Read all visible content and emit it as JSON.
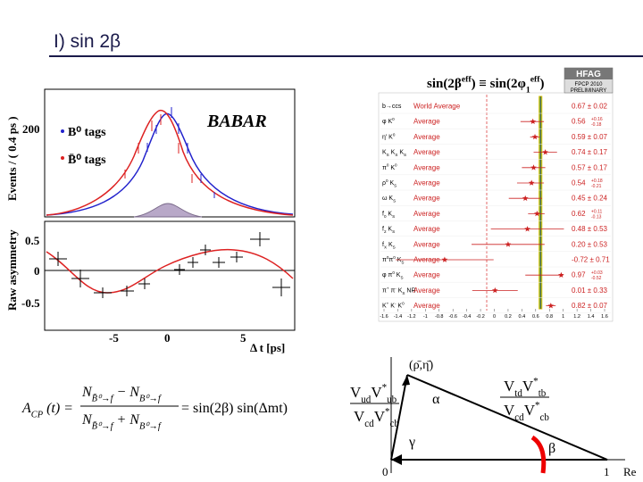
{
  "slide_title": "I)  sin 2β",
  "babar_plot": {
    "brand": "BABAR",
    "y_label_top": "Events / ( 0.4 ps )",
    "y_label_bottom": "Raw asymmetry",
    "x_label": "Δ t [ps]",
    "legend": [
      "B⁰ tags",
      "B̄⁰ tags"
    ],
    "top_ticks": [
      "200"
    ],
    "bottom_ticks": [
      "0.5",
      "0",
      "-0.5"
    ],
    "x_ticks": [
      "-5",
      "0",
      "5"
    ]
  },
  "hfag": {
    "title": [
      {
        "text": "sin(2β"
      },
      {
        "text": "eff",
        "pos": "sup"
      },
      {
        "text": ") ≡ sin(2φ"
      },
      {
        "text": "1",
        "pos": "sub"
      },
      {
        "text": "eff",
        "pos": "sup"
      },
      {
        "text": ")"
      }
    ],
    "logo": [
      "HFAG",
      "FPCP 2010",
      "PRELIMINARY"
    ],
    "xlim": [
      -1.6,
      1.6
    ],
    "xticks": [
      -1.6,
      -1.4,
      -1.2,
      -1,
      -0.8,
      -0.6,
      -0.4,
      -0.2,
      0,
      0.2,
      0.4,
      0.6,
      0.8,
      1,
      1.2,
      1.4,
      1.6
    ],
    "rows": [
      {
        "label": [
          {
            "text": "b→ccs"
          }
        ],
        "fit": "World Average",
        "value": 0.67,
        "err_low": 0.02,
        "err_high": 0.02,
        "value_label": "0.67 ± 0.02"
      },
      {
        "label": [
          {
            "text": "φ K"
          },
          {
            "text": "0",
            "pos": "sup"
          }
        ],
        "fit": "Average",
        "value": 0.56,
        "err_low": 0.18,
        "err_high": 0.16,
        "value_label": "0.56",
        "err_label_high": "+0.16",
        "err_label_low": "-0.18"
      },
      {
        "label": [
          {
            "text": "η′ K"
          },
          {
            "text": "0",
            "pos": "sup"
          }
        ],
        "fit": "Average",
        "value": 0.59,
        "err_low": 0.07,
        "err_high": 0.07,
        "value_label": "0.59 ± 0.07"
      },
      {
        "label": [
          {
            "text": "K"
          },
          {
            "text": "S",
            "pos": "sub"
          },
          {
            "text": " K"
          },
          {
            "text": "S",
            "pos": "sub"
          },
          {
            "text": " K"
          },
          {
            "text": "S",
            "pos": "sub"
          }
        ],
        "fit": "Average",
        "value": 0.74,
        "err_low": 0.17,
        "err_high": 0.17,
        "value_label": "0.74 ± 0.17"
      },
      {
        "label": [
          {
            "text": "π"
          },
          {
            "text": "0",
            "pos": "sup"
          },
          {
            "text": " K"
          },
          {
            "text": "0",
            "pos": "sup"
          }
        ],
        "fit": "Average",
        "value": 0.57,
        "err_low": 0.17,
        "err_high": 0.17,
        "value_label": "0.57 ± 0.17"
      },
      {
        "label": [
          {
            "text": "ρ"
          },
          {
            "text": "0",
            "pos": "sup"
          },
          {
            "text": " K"
          },
          {
            "text": "S",
            "pos": "sub"
          }
        ],
        "fit": "Average",
        "value": 0.54,
        "err_low": 0.21,
        "err_high": 0.18,
        "value_label": "0.54",
        "err_label_high": "+0.18",
        "err_label_low": "-0.21"
      },
      {
        "label": [
          {
            "text": "ω K"
          },
          {
            "text": "S",
            "pos": "sub"
          }
        ],
        "fit": "Average",
        "value": 0.45,
        "err_low": 0.24,
        "err_high": 0.24,
        "value_label": "0.45 ± 0.24"
      },
      {
        "label": [
          {
            "text": "f"
          },
          {
            "text": "0",
            "pos": "sub"
          },
          {
            "text": " K"
          },
          {
            "text": "S",
            "pos": "sub"
          }
        ],
        "fit": "Average",
        "value": 0.62,
        "err_low": 0.13,
        "err_high": 0.11,
        "value_label": "0.62",
        "err_label_high": "+0.11",
        "err_label_low": "-0.13"
      },
      {
        "label": [
          {
            "text": "f"
          },
          {
            "text": "2",
            "pos": "sub"
          },
          {
            "text": " K"
          },
          {
            "text": "S",
            "pos": "sub"
          }
        ],
        "fit": "Average",
        "value": 0.48,
        "err_low": 0.53,
        "err_high": 0.53,
        "value_label": "0.48 ± 0.53"
      },
      {
        "label": [
          {
            "text": "f"
          },
          {
            "text": "X",
            "pos": "sub"
          },
          {
            "text": " K"
          },
          {
            "text": "S",
            "pos": "sub"
          }
        ],
        "fit": "Average",
        "value": 0.2,
        "err_low": 0.53,
        "err_high": 0.53,
        "value_label": "0.20 ± 0.53"
      },
      {
        "label": [
          {
            "text": "π"
          },
          {
            "text": "0",
            "pos": "sup"
          },
          {
            "text": "π"
          },
          {
            "text": "0",
            "pos": "sup"
          },
          {
            "text": " K"
          },
          {
            "text": "S",
            "pos": "sub"
          }
        ],
        "fit": "Average",
        "value": -0.72,
        "err_low": 0.71,
        "err_high": 0.71,
        "value_label": "-0.72 ± 0.71"
      },
      {
        "label": [
          {
            "text": "φ π"
          },
          {
            "text": "0",
            "pos": "sup"
          },
          {
            "text": " K"
          },
          {
            "text": "S",
            "pos": "sub"
          }
        ],
        "fit": "Average",
        "value": 0.97,
        "err_low": 0.52,
        "err_high": 0.03,
        "value_label": "0.97",
        "err_label_high": "+0.03",
        "err_label_low": "-0.52"
      },
      {
        "label": [
          {
            "text": "π"
          },
          {
            "text": "+",
            "pos": "sup"
          },
          {
            "text": " π"
          },
          {
            "text": "-",
            "pos": "sup"
          },
          {
            "text": " K"
          },
          {
            "text": "S",
            "pos": "sub"
          },
          {
            "text": " NR"
          }
        ],
        "fit": "Average",
        "value": 0.01,
        "err_low": 0.33,
        "err_high": 0.33,
        "value_label": "0.01 ± 0.33"
      },
      {
        "label": [
          {
            "text": "K"
          },
          {
            "text": "+",
            "pos": "sup"
          },
          {
            "text": " K"
          },
          {
            "text": "-",
            "pos": "sup"
          },
          {
            "text": " K"
          },
          {
            "text": "0",
            "pos": "sup"
          }
        ],
        "fit": "Average",
        "value": 0.82,
        "err_low": 0.07,
        "err_high": 0.07,
        "value_label": "0.82 ± 0.07"
      }
    ]
  },
  "formula": {
    "lhs": [
      {
        "text": "A"
      },
      {
        "text": "CP",
        "pos": "sub"
      },
      {
        "text": " (t) ="
      }
    ],
    "numerator": [
      {
        "text": "N"
      },
      {
        "text": "B̄⁰→f",
        "pos": "sub"
      },
      {
        "text": " − N"
      },
      {
        "text": "B⁰→f",
        "pos": "sub"
      }
    ],
    "denominator": [
      {
        "text": "N"
      },
      {
        "text": "B̄⁰→f",
        "pos": "sub"
      },
      {
        "text": " + N"
      },
      {
        "text": "B⁰→f",
        "pos": "sub"
      }
    ],
    "rhs": [
      {
        "text": "= sin(2β) sin(Δmt)"
      }
    ]
  },
  "triangle": {
    "apex": "(ρ̄,η̄)",
    "alpha": "α",
    "beta": "β",
    "gamma": "γ",
    "origin": "0",
    "one": "1",
    "axis": "Re",
    "left_numerator": [
      {
        "text": "V"
      },
      {
        "text": "ud",
        "pos": "sub"
      },
      {
        "text": "V"
      },
      {
        "text": "*",
        "pos": "sup"
      },
      {
        "text": "ub",
        "pos": "sub"
      }
    ],
    "left_denominator": [
      {
        "text": "V"
      },
      {
        "text": "cd",
        "pos": "sub"
      },
      {
        "text": "V"
      },
      {
        "text": "*",
        "pos": "sup"
      },
      {
        "text": "cb",
        "pos": "sub"
      }
    ],
    "right_numerator": [
      {
        "text": "V"
      },
      {
        "text": "td",
        "pos": "sub"
      },
      {
        "text": "V"
      },
      {
        "text": "*",
        "pos": "sup"
      },
      {
        "text": "tb",
        "pos": "sub"
      }
    ],
    "right_denominator": [
      {
        "text": "V"
      },
      {
        "text": "cd",
        "pos": "sub"
      },
      {
        "text": "V"
      },
      {
        "text": "*",
        "pos": "sup"
      },
      {
        "text": "cb",
        "pos": "sub"
      }
    ]
  }
}
